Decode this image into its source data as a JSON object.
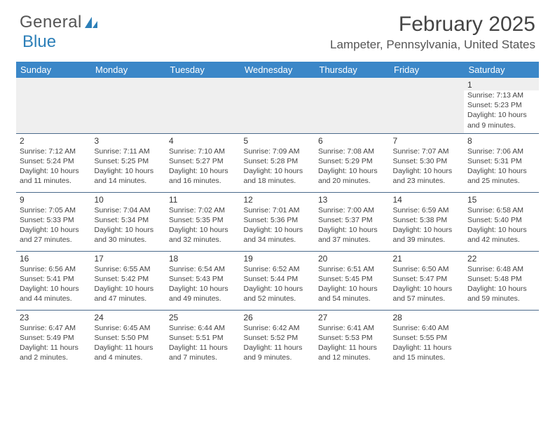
{
  "logo": {
    "text1": "General",
    "text2": "Blue"
  },
  "title": "February 2025",
  "location": "Lampeter, Pennsylvania, United States",
  "colors": {
    "header_bg": "#3b87c8",
    "header_text": "#ffffff",
    "row_border": "#4a6a8a",
    "empty_bg": "#efefef",
    "logo_blue": "#2c7fb8"
  },
  "dayHeaders": [
    "Sunday",
    "Monday",
    "Tuesday",
    "Wednesday",
    "Thursday",
    "Friday",
    "Saturday"
  ],
  "weeks": [
    [
      null,
      null,
      null,
      null,
      null,
      null,
      {
        "n": "1",
        "sunrise": "7:13 AM",
        "sunset": "5:23 PM",
        "daylight": "10 hours and 9 minutes."
      }
    ],
    [
      {
        "n": "2",
        "sunrise": "7:12 AM",
        "sunset": "5:24 PM",
        "daylight": "10 hours and 11 minutes."
      },
      {
        "n": "3",
        "sunrise": "7:11 AM",
        "sunset": "5:25 PM",
        "daylight": "10 hours and 14 minutes."
      },
      {
        "n": "4",
        "sunrise": "7:10 AM",
        "sunset": "5:27 PM",
        "daylight": "10 hours and 16 minutes."
      },
      {
        "n": "5",
        "sunrise": "7:09 AM",
        "sunset": "5:28 PM",
        "daylight": "10 hours and 18 minutes."
      },
      {
        "n": "6",
        "sunrise": "7:08 AM",
        "sunset": "5:29 PM",
        "daylight": "10 hours and 20 minutes."
      },
      {
        "n": "7",
        "sunrise": "7:07 AM",
        "sunset": "5:30 PM",
        "daylight": "10 hours and 23 minutes."
      },
      {
        "n": "8",
        "sunrise": "7:06 AM",
        "sunset": "5:31 PM",
        "daylight": "10 hours and 25 minutes."
      }
    ],
    [
      {
        "n": "9",
        "sunrise": "7:05 AM",
        "sunset": "5:33 PM",
        "daylight": "10 hours and 27 minutes."
      },
      {
        "n": "10",
        "sunrise": "7:04 AM",
        "sunset": "5:34 PM",
        "daylight": "10 hours and 30 minutes."
      },
      {
        "n": "11",
        "sunrise": "7:02 AM",
        "sunset": "5:35 PM",
        "daylight": "10 hours and 32 minutes."
      },
      {
        "n": "12",
        "sunrise": "7:01 AM",
        "sunset": "5:36 PM",
        "daylight": "10 hours and 34 minutes."
      },
      {
        "n": "13",
        "sunrise": "7:00 AM",
        "sunset": "5:37 PM",
        "daylight": "10 hours and 37 minutes."
      },
      {
        "n": "14",
        "sunrise": "6:59 AM",
        "sunset": "5:38 PM",
        "daylight": "10 hours and 39 minutes."
      },
      {
        "n": "15",
        "sunrise": "6:58 AM",
        "sunset": "5:40 PM",
        "daylight": "10 hours and 42 minutes."
      }
    ],
    [
      {
        "n": "16",
        "sunrise": "6:56 AM",
        "sunset": "5:41 PM",
        "daylight": "10 hours and 44 minutes."
      },
      {
        "n": "17",
        "sunrise": "6:55 AM",
        "sunset": "5:42 PM",
        "daylight": "10 hours and 47 minutes."
      },
      {
        "n": "18",
        "sunrise": "6:54 AM",
        "sunset": "5:43 PM",
        "daylight": "10 hours and 49 minutes."
      },
      {
        "n": "19",
        "sunrise": "6:52 AM",
        "sunset": "5:44 PM",
        "daylight": "10 hours and 52 minutes."
      },
      {
        "n": "20",
        "sunrise": "6:51 AM",
        "sunset": "5:45 PM",
        "daylight": "10 hours and 54 minutes."
      },
      {
        "n": "21",
        "sunrise": "6:50 AM",
        "sunset": "5:47 PM",
        "daylight": "10 hours and 57 minutes."
      },
      {
        "n": "22",
        "sunrise": "6:48 AM",
        "sunset": "5:48 PM",
        "daylight": "10 hours and 59 minutes."
      }
    ],
    [
      {
        "n": "23",
        "sunrise": "6:47 AM",
        "sunset": "5:49 PM",
        "daylight": "11 hours and 2 minutes."
      },
      {
        "n": "24",
        "sunrise": "6:45 AM",
        "sunset": "5:50 PM",
        "daylight": "11 hours and 4 minutes."
      },
      {
        "n": "25",
        "sunrise": "6:44 AM",
        "sunset": "5:51 PM",
        "daylight": "11 hours and 7 minutes."
      },
      {
        "n": "26",
        "sunrise": "6:42 AM",
        "sunset": "5:52 PM",
        "daylight": "11 hours and 9 minutes."
      },
      {
        "n": "27",
        "sunrise": "6:41 AM",
        "sunset": "5:53 PM",
        "daylight": "11 hours and 12 minutes."
      },
      {
        "n": "28",
        "sunrise": "6:40 AM",
        "sunset": "5:55 PM",
        "daylight": "11 hours and 15 minutes."
      },
      null
    ]
  ],
  "labels": {
    "sunrise": "Sunrise:",
    "sunset": "Sunset:",
    "daylight": "Daylight:"
  }
}
